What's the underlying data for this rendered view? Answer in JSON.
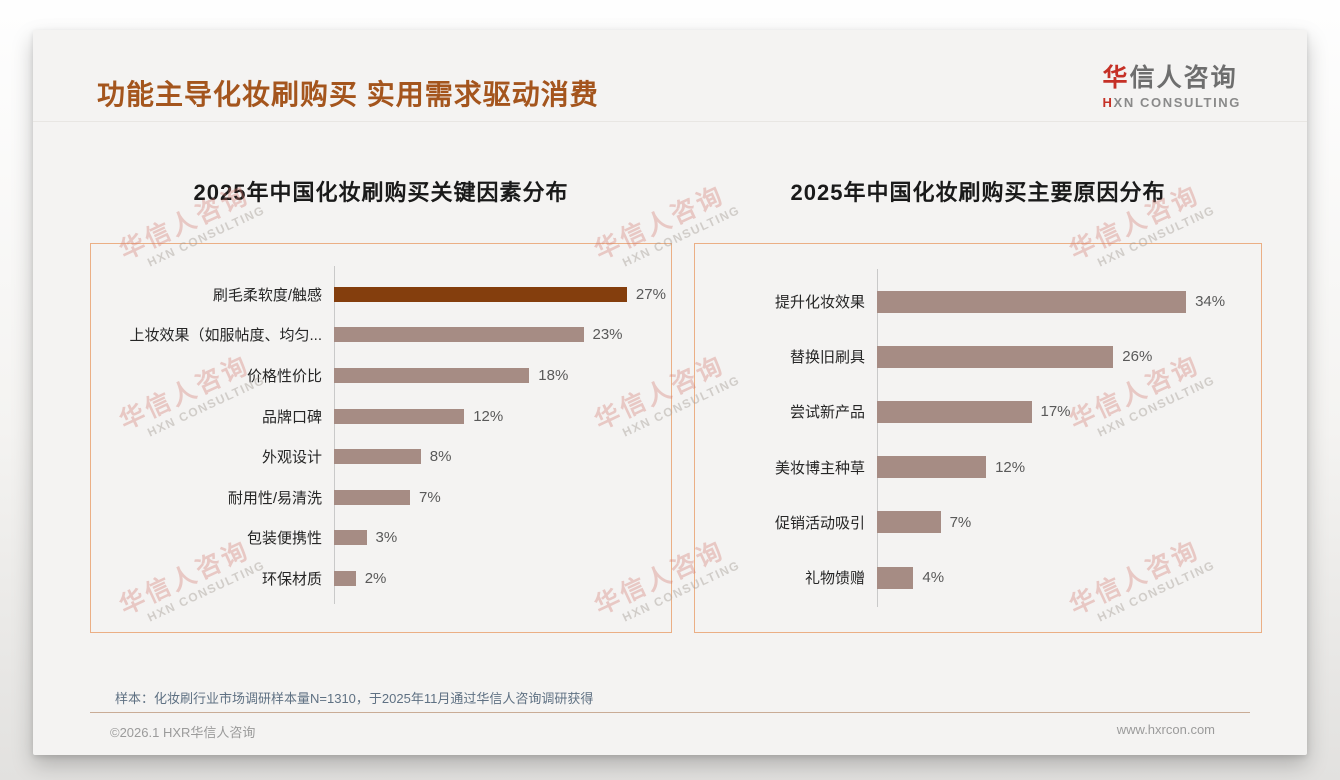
{
  "page": {
    "title": "功能主导化妆刷购买 实用需求驱动消费",
    "logo": {
      "cn_first": "华",
      "cn_rest": "信人咨询",
      "en_first": "H",
      "en_rest": "XN CONSULTING"
    },
    "note": "样本：化妆刷行业市场调研样本量N=1310，于2025年11月通过华信人咨询调研获得",
    "footer_left": "©2026.1 HXR华信人咨询",
    "footer_right": "www.hxrcon.com",
    "watermark": {
      "line1": "华信人咨询",
      "line2": "HXN CONSULTING"
    }
  },
  "colors": {
    "title_brown": "#A4551D",
    "highlight_bar": "#843E0D",
    "normal_bar": "#A68C84",
    "panel_border": "#EBAF85",
    "axis_line": "#C9C9C9",
    "value_text": "#595959",
    "note_text": "#5F7183",
    "footer_divider": "#C9AC96",
    "logo_red": "#C53026"
  },
  "chart_data": [
    {
      "type": "bar",
      "orientation": "horizontal",
      "title": "2025年中国化妆刷购买关键因素分布",
      "categories": [
        "刷毛柔软度/触感",
        "上妆效果（如服帖度、均匀...",
        "价格性价比",
        "品牌口碑",
        "外观设计",
        "耐用性/易清洗",
        "包装便携性",
        "环保材质"
      ],
      "values": [
        27,
        23,
        18,
        12,
        8,
        7,
        3,
        2
      ],
      "unit": "%",
      "highlight_index": 0,
      "highlight_color": "#843E0D",
      "bar_color": "#A68C84",
      "xlim": [
        0,
        31
      ],
      "value_labels": [
        "27%",
        "23%",
        "18%",
        "12%",
        "8%",
        "7%",
        "3%",
        "2%"
      ],
      "grid": false,
      "legend": false
    },
    {
      "type": "bar",
      "orientation": "horizontal",
      "title": "2025年中国化妆刷购买主要原因分布",
      "categories": [
        "提升化妆效果",
        "替换旧刷具",
        "尝试新产品",
        "美妆博主种草",
        "促销活动吸引",
        "礼物馈赠"
      ],
      "values": [
        34,
        26,
        17,
        12,
        7,
        4
      ],
      "unit": "%",
      "highlight_index": -1,
      "highlight_color": "#843E0D",
      "bar_color": "#A68C84",
      "xlim": [
        0,
        42
      ],
      "value_labels": [
        "34%",
        "26%",
        "17%",
        "12%",
        "7%",
        "4%"
      ],
      "grid": false,
      "legend": false
    }
  ]
}
